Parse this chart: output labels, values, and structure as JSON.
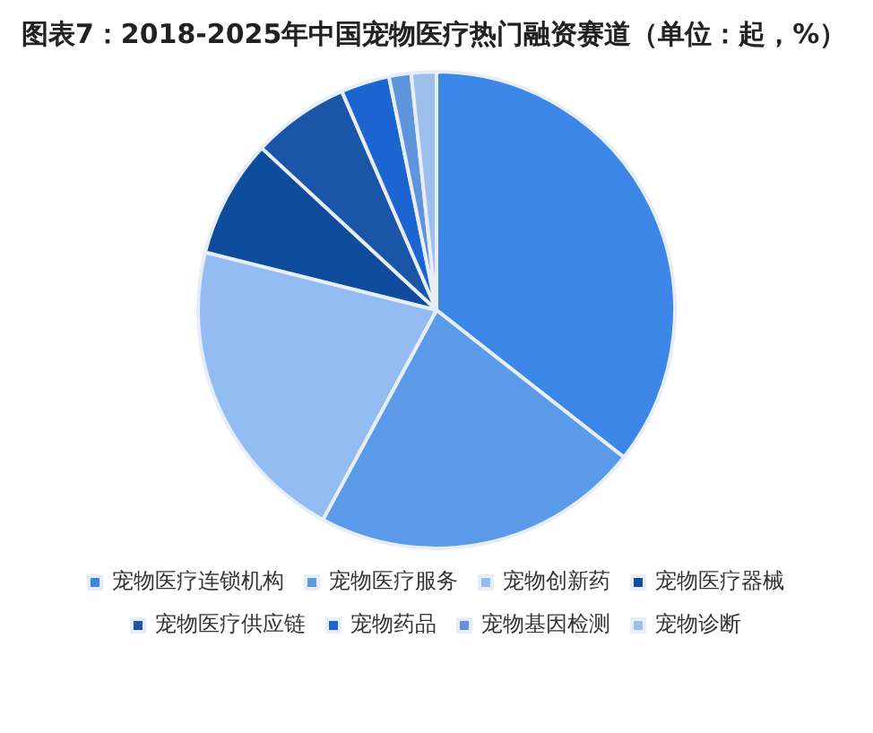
{
  "chart_data": {
    "type": "pie",
    "title": "图表7：2018-2025年中国宠物医疗热门融资赛道（单位：起，%）",
    "categories": [
      "宠物医疗连锁机构",
      "宠物医疗服务",
      "宠物创新药",
      "宠物医疗器械",
      "宠物医疗供应链",
      "宠物药品",
      "宠物基因检测",
      "宠物诊断"
    ],
    "values": [
      35.6,
      22.3,
      21.0,
      8.0,
      6.6,
      3.3,
      1.5,
      1.7
    ],
    "colors": [
      "#3b86e6",
      "#5a9ae8",
      "#93bdf2",
      "#0f4c9e",
      "#1a55a8",
      "#1c64d0",
      "#5d94dc",
      "#9dbfeb"
    ],
    "legend": "bottom"
  }
}
